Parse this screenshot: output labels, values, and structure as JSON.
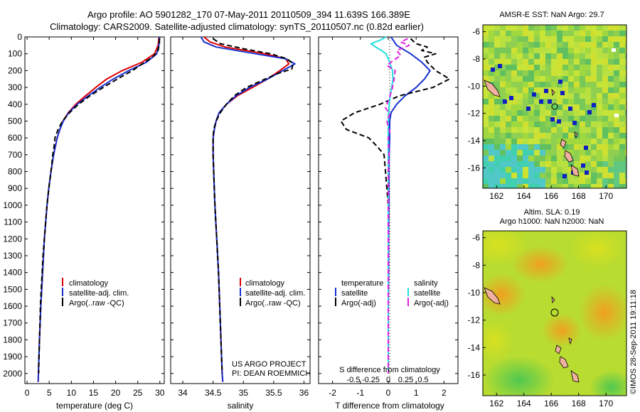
{
  "header": {
    "line1": "Argo profile: AO 5901282_170 07-May-2011 20110509_394 11.639S 166.389E",
    "line2": "Climatology: CARS2009. Satellite-adjusted climatology: synTS_20110507.nc (0.82d earlier)"
  },
  "colors": {
    "climatology": "#e00000",
    "satellite": "#1530d0",
    "argo": "#000000",
    "salinity_satellite": "#20e0e0",
    "salinity_argo": "#e020e0"
  },
  "chart_data": [
    {
      "type": "line",
      "id": "temperature",
      "xlabel": "temperature (deg C)",
      "ylabel": "",
      "xlim": [
        -0.5,
        31
      ],
      "ylim": [
        2060,
        0
      ],
      "xticks": [
        0,
        5,
        10,
        15,
        20,
        25,
        30
      ],
      "yticks": [
        0,
        100,
        200,
        300,
        400,
        500,
        600,
        700,
        800,
        900,
        1000,
        1100,
        1200,
        1300,
        1400,
        1500,
        1600,
        1700,
        1800,
        1900,
        2000
      ],
      "legend": [
        "climatology",
        "satellite-adj. clim.",
        "Argo(..raw -QC)"
      ],
      "series": [
        {
          "name": "climatology",
          "depth": [
            0,
            50,
            100,
            150,
            200,
            250,
            300,
            350,
            400,
            450,
            500,
            550,
            600,
            650,
            700,
            800,
            900,
            1000,
            1200,
            1400,
            1600,
            1800,
            2000,
            2050
          ],
          "values": [
            29.8,
            29.6,
            28.8,
            26.0,
            21.5,
            18.0,
            15.5,
            13.2,
            11.0,
            9.3,
            8.1,
            7.4,
            6.8,
            6.4,
            6.0,
            5.4,
            4.9,
            4.5,
            3.9,
            3.5,
            3.1,
            2.8,
            2.55,
            2.5
          ]
        },
        {
          "name": "satellite-adj. clim.",
          "depth": [
            0,
            50,
            100,
            150,
            200,
            250,
            300,
            350,
            400,
            450,
            500,
            550,
            600,
            650,
            700,
            800,
            900,
            1000,
            1200,
            1400,
            1600,
            1800,
            2000,
            2050
          ],
          "values": [
            29.9,
            29.8,
            29.3,
            27.0,
            23.0,
            19.5,
            16.5,
            13.8,
            11.3,
            9.4,
            8.2,
            7.4,
            6.8,
            6.4,
            6.0,
            5.4,
            4.9,
            4.5,
            3.9,
            3.5,
            3.1,
            2.8,
            2.55,
            2.5
          ]
        },
        {
          "name": "Argo(..raw -QC)",
          "depth": [
            10,
            40,
            80,
            120,
            150,
            200,
            250,
            300,
            350,
            400,
            450,
            500,
            550,
            600,
            650,
            700,
            750,
            800,
            900,
            1000,
            1100,
            1200,
            1300,
            1400,
            1500,
            1600,
            1700,
            1800,
            1900,
            2000
          ],
          "values": [
            29.9,
            29.9,
            29.6,
            28.4,
            26.6,
            23.8,
            20.4,
            17.2,
            14.2,
            11.6,
            9.6,
            8.0,
            7.0,
            6.3,
            6.1,
            5.8,
            5.6,
            5.4,
            4.9,
            4.5,
            4.2,
            3.9,
            3.6,
            3.4,
            3.2,
            3.0,
            2.9,
            2.8,
            2.7,
            2.6
          ]
        }
      ]
    },
    {
      "type": "line",
      "id": "salinity",
      "xlabel": "salinity",
      "ylabel": "",
      "xlim": [
        33.8,
        36.1
      ],
      "ylim": [
        2060,
        0
      ],
      "xticks": [
        34,
        34.5,
        35,
        35.5,
        36
      ],
      "legend": [
        "climatology",
        "satellite-adj. clim.",
        "Argo(..raw -QC)"
      ],
      "annotation": [
        "US ARGO PROJECT",
        "PI: DEAN ROEMMICH"
      ],
      "series": [
        {
          "name": "climatology",
          "depth": [
            0,
            30,
            60,
            100,
            130,
            160,
            200,
            250,
            300,
            350,
            400,
            450,
            500,
            550,
            600,
            700,
            800,
            1000,
            1200,
            1400,
            1600,
            1800,
            2000,
            2050
          ],
          "values": [
            34.35,
            34.45,
            34.7,
            35.35,
            35.7,
            35.75,
            35.6,
            35.4,
            35.15,
            34.9,
            34.72,
            34.6,
            34.55,
            34.52,
            34.5,
            34.5,
            34.51,
            34.53,
            34.56,
            34.59,
            34.61,
            34.63,
            34.65,
            34.66
          ]
        },
        {
          "name": "satellite-adj. clim.",
          "depth": [
            0,
            30,
            60,
            100,
            130,
            160,
            200,
            250,
            300,
            350,
            400,
            450,
            500,
            550,
            600,
            700,
            800,
            1000,
            1200,
            1400,
            1600,
            1800,
            2000,
            2050
          ],
          "values": [
            34.3,
            34.35,
            34.55,
            35.2,
            35.7,
            35.85,
            35.65,
            35.4,
            35.1,
            34.88,
            34.72,
            34.6,
            34.55,
            34.52,
            34.5,
            34.5,
            34.51,
            34.53,
            34.56,
            34.59,
            34.61,
            34.63,
            34.65,
            34.66
          ]
        },
        {
          "name": "Argo(..raw -QC)",
          "depth": [
            10,
            40,
            70,
            100,
            130,
            160,
            190,
            220,
            260,
            300,
            350,
            400,
            450,
            500,
            550,
            600,
            650,
            700,
            800,
            1000,
            1200,
            1400,
            1600,
            1800,
            2000
          ],
          "values": [
            34.5,
            34.62,
            35.0,
            35.45,
            35.72,
            35.82,
            35.8,
            35.55,
            35.3,
            35.05,
            34.85,
            34.72,
            34.62,
            34.55,
            34.51,
            34.5,
            34.5,
            34.5,
            34.51,
            34.53,
            34.56,
            34.59,
            34.61,
            34.63,
            34.65
          ]
        }
      ]
    },
    {
      "type": "line",
      "id": "difference",
      "xlabel_top": "S difference from climatology",
      "xlabel": "T difference from climatology",
      "xlim": [
        -2.5,
        2.5
      ],
      "ylim": [
        2060,
        0
      ],
      "xticks_T": [
        -2,
        -1,
        0,
        1,
        2
      ],
      "xticks_S": [
        -0.5,
        -0.25,
        0,
        0.25,
        0.5
      ],
      "legend_temperature": [
        "temperature",
        "satellite",
        "Argo(-adj)"
      ],
      "legend_salinity": [
        "salinity",
        "satellite",
        "Argo(-adj)"
      ],
      "series": [
        {
          "name": "T satellite",
          "depth": [
            0,
            50,
            100,
            150,
            200,
            250,
            300,
            350,
            400,
            450,
            500,
            600,
            700,
            800,
            1000,
            1200,
            1400,
            1600,
            1800,
            2000
          ],
          "values": [
            0.1,
            0.3,
            0.8,
            1.2,
            1.5,
            1.3,
            1.0,
            0.6,
            0.3,
            0.1,
            0.05,
            0.05,
            0.03,
            0.02,
            0.02,
            0.01,
            0.01,
            0.0,
            0.0,
            0.0
          ]
        },
        {
          "name": "T Argo(-adj)",
          "depth": [
            10,
            40,
            60,
            80,
            100,
            120,
            150,
            200,
            250,
            300,
            350,
            400,
            450,
            500,
            550,
            600,
            650,
            700,
            800,
            900,
            1000,
            1200,
            1400,
            1600,
            1800,
            2000
          ],
          "values": [
            0.8,
            1.0,
            1.4,
            1.2,
            1.7,
            1.3,
            1.4,
            1.7,
            2.2,
            1.6,
            0.4,
            -0.3,
            -1.2,
            -1.7,
            -1.5,
            -0.7,
            -0.4,
            -0.15,
            -0.1,
            -0.05,
            0.0,
            0.0,
            0.0,
            0.0,
            0.0,
            0.0
          ]
        },
        {
          "name": "S satellite",
          "depth": [
            0,
            20,
            40,
            60,
            80,
            100,
            130,
            160,
            200,
            250,
            300,
            350,
            400,
            500,
            600,
            700,
            800,
            1000,
            1200,
            1500,
            2000
          ],
          "values": [
            -0.08,
            -0.3,
            -0.62,
            -0.45,
            -0.25,
            -0.08,
            0.0,
            0.07,
            0.15,
            0.17,
            0.12,
            0.07,
            0.03,
            0.0,
            0.0,
            0.0,
            0.0,
            0.0,
            0.0,
            0.0,
            0.0
          ]
        },
        {
          "name": "S Argo(-adj)",
          "depth": [
            10,
            30,
            50,
            80,
            110,
            140,
            170,
            200,
            260,
            320,
            380,
            420,
            460,
            500,
            560,
            600,
            700,
            800,
            1000,
            2000
          ],
          "values": [
            0.28,
            0.18,
            0.3,
            0.12,
            0.18,
            0.07,
            -0.02,
            0.1,
            0.08,
            0.05,
            0.0,
            -0.04,
            0.02,
            -0.02,
            0.02,
            0.0,
            0.01,
            0.0,
            0.0,
            0.0
          ]
        }
      ]
    },
    {
      "type": "heatmap",
      "id": "sst-map",
      "title": "AMSR-E SST: NaN Argo: 29.7",
      "xticks": [
        162,
        164,
        166,
        168,
        170
      ],
      "yticks": [
        -6,
        -8,
        -10,
        -12,
        -14,
        -16
      ],
      "xlim": [
        161,
        171.5
      ],
      "ylim": [
        -17.5,
        -5.5
      ],
      "argo_position": {
        "lon": 166.389,
        "lat": -11.639
      }
    },
    {
      "type": "heatmap",
      "id": "sla-map",
      "title": "Altim. SLA: 0.19",
      "subtitle": "Argo h1000: NaN h2000: NaN",
      "xticks": [
        162,
        164,
        166,
        168,
        170
      ],
      "yticks": [
        -6,
        -8,
        -10,
        -12,
        -14,
        -16
      ],
      "xlim": [
        161,
        171.5
      ],
      "ylim": [
        -17.5,
        -5.5
      ],
      "argo_position": {
        "lon": 166.389,
        "lat": -11.639
      }
    }
  ],
  "footer": {
    "credit": "©IMOS 28-Sep-2011 19:11:18"
  }
}
